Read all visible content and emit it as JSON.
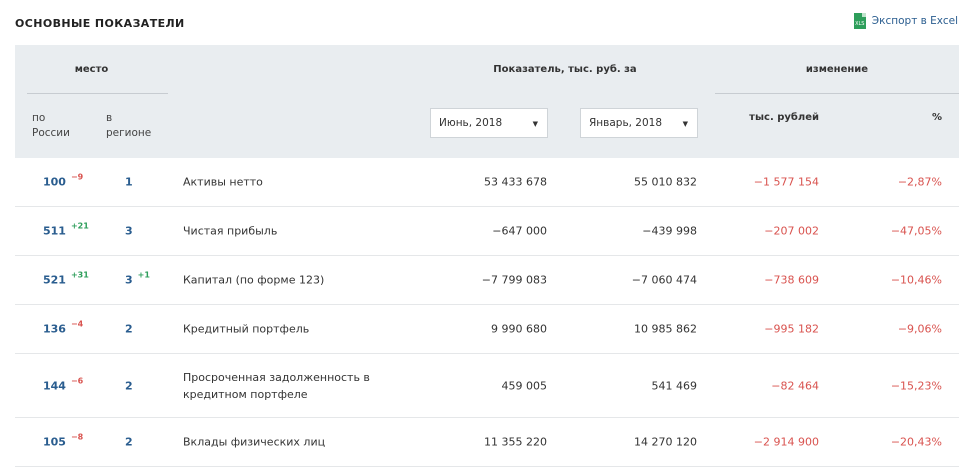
{
  "header": {
    "title": "ОСНОВНЫЕ ПОКАЗАТЕЛИ",
    "export_label": "Экспорт в Excel",
    "export_icon": "xls-icon"
  },
  "table_head": {
    "place": "место",
    "by_russia": "по\nРоссии",
    "in_region": "в\nрегионе",
    "indicator": "Показатель, тыс. руб. за",
    "change": "изменение",
    "thousand_rub": "тыс. рублей",
    "percent": "%",
    "period1": "Июнь, 2018",
    "period2": "Январь, 2018"
  },
  "rows": [
    {
      "rank": "100",
      "rank_delta": "−9",
      "rank_dir": "neg",
      "region": "1",
      "region_delta": "",
      "region_dir": "",
      "name": "Активы нетто",
      "v1": "53 433 678",
      "v2": "55 010 832",
      "diff": "−1 577 154",
      "pct": "−2,87%"
    },
    {
      "rank": "511",
      "rank_delta": "+21",
      "rank_dir": "pos",
      "region": "3",
      "region_delta": "",
      "region_dir": "",
      "name": "Чистая прибыль",
      "v1": "−647 000",
      "v2": "−439 998",
      "diff": "−207 002",
      "pct": "−47,05%"
    },
    {
      "rank": "521",
      "rank_delta": "+31",
      "rank_dir": "pos",
      "region": "3",
      "region_delta": "+1",
      "region_dir": "pos",
      "name": "Капитал (по форме 123)",
      "v1": "−7 799 083",
      "v2": "−7 060 474",
      "diff": "−738 609",
      "pct": "−10,46%"
    },
    {
      "rank": "136",
      "rank_delta": "−4",
      "rank_dir": "neg",
      "region": "2",
      "region_delta": "",
      "region_dir": "",
      "name": "Кредитный портфель",
      "v1": "9 990 680",
      "v2": "10 985 862",
      "diff": "−995 182",
      "pct": "−9,06%"
    },
    {
      "rank": "144",
      "rank_delta": "−6",
      "rank_dir": "neg",
      "region": "2",
      "region_delta": "",
      "region_dir": "",
      "name": "Просроченная задолженность в кредитном портфеле",
      "v1": "459 005",
      "v2": "541 469",
      "diff": "−82 464",
      "pct": "−15,23%"
    },
    {
      "rank": "105",
      "rank_delta": "−8",
      "rank_dir": "neg",
      "region": "2",
      "region_delta": "",
      "region_dir": "",
      "name": "Вклады физических лиц",
      "v1": "11 355 220",
      "v2": "14 270 120",
      "diff": "−2 914 900",
      "pct": "−20,43%"
    }
  ],
  "colors": {
    "accent": "#2a5d8f",
    "negative": "#d9534f",
    "positive": "#2e9e5b",
    "header_bg": "#e9edf0"
  }
}
